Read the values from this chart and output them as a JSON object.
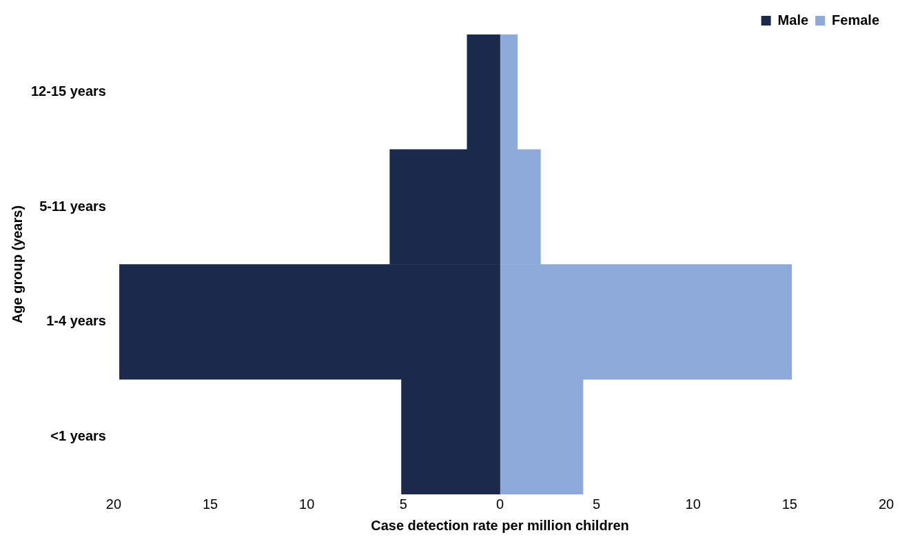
{
  "chart_data": {
    "type": "bar",
    "orientation": "horizontal",
    "stacked": true,
    "xlabel": "Case detection rate per million children",
    "ylabel": "Age group (years)",
    "categories": [
      "12-15 years",
      "5-11 years",
      "1-4 years",
      "<1 years"
    ],
    "series": [
      {
        "name": "Male",
        "color": "#1b2a4a",
        "values": [
          -1.7,
          -5.7,
          -19.7,
          -5.1
        ]
      },
      {
        "name": "Female",
        "color": "#8eaadb",
        "values": [
          0.9,
          2.1,
          15.1,
          4.3
        ]
      }
    ],
    "xlim": [
      -20,
      20
    ],
    "xticks": [
      {
        "value": -20,
        "label": "20"
      },
      {
        "value": -15,
        "label": "15"
      },
      {
        "value": -10,
        "label": "10"
      },
      {
        "value": -5,
        "label": "5"
      },
      0,
      5,
      10,
      15,
      20
    ],
    "grid": false,
    "legend": "top right"
  }
}
